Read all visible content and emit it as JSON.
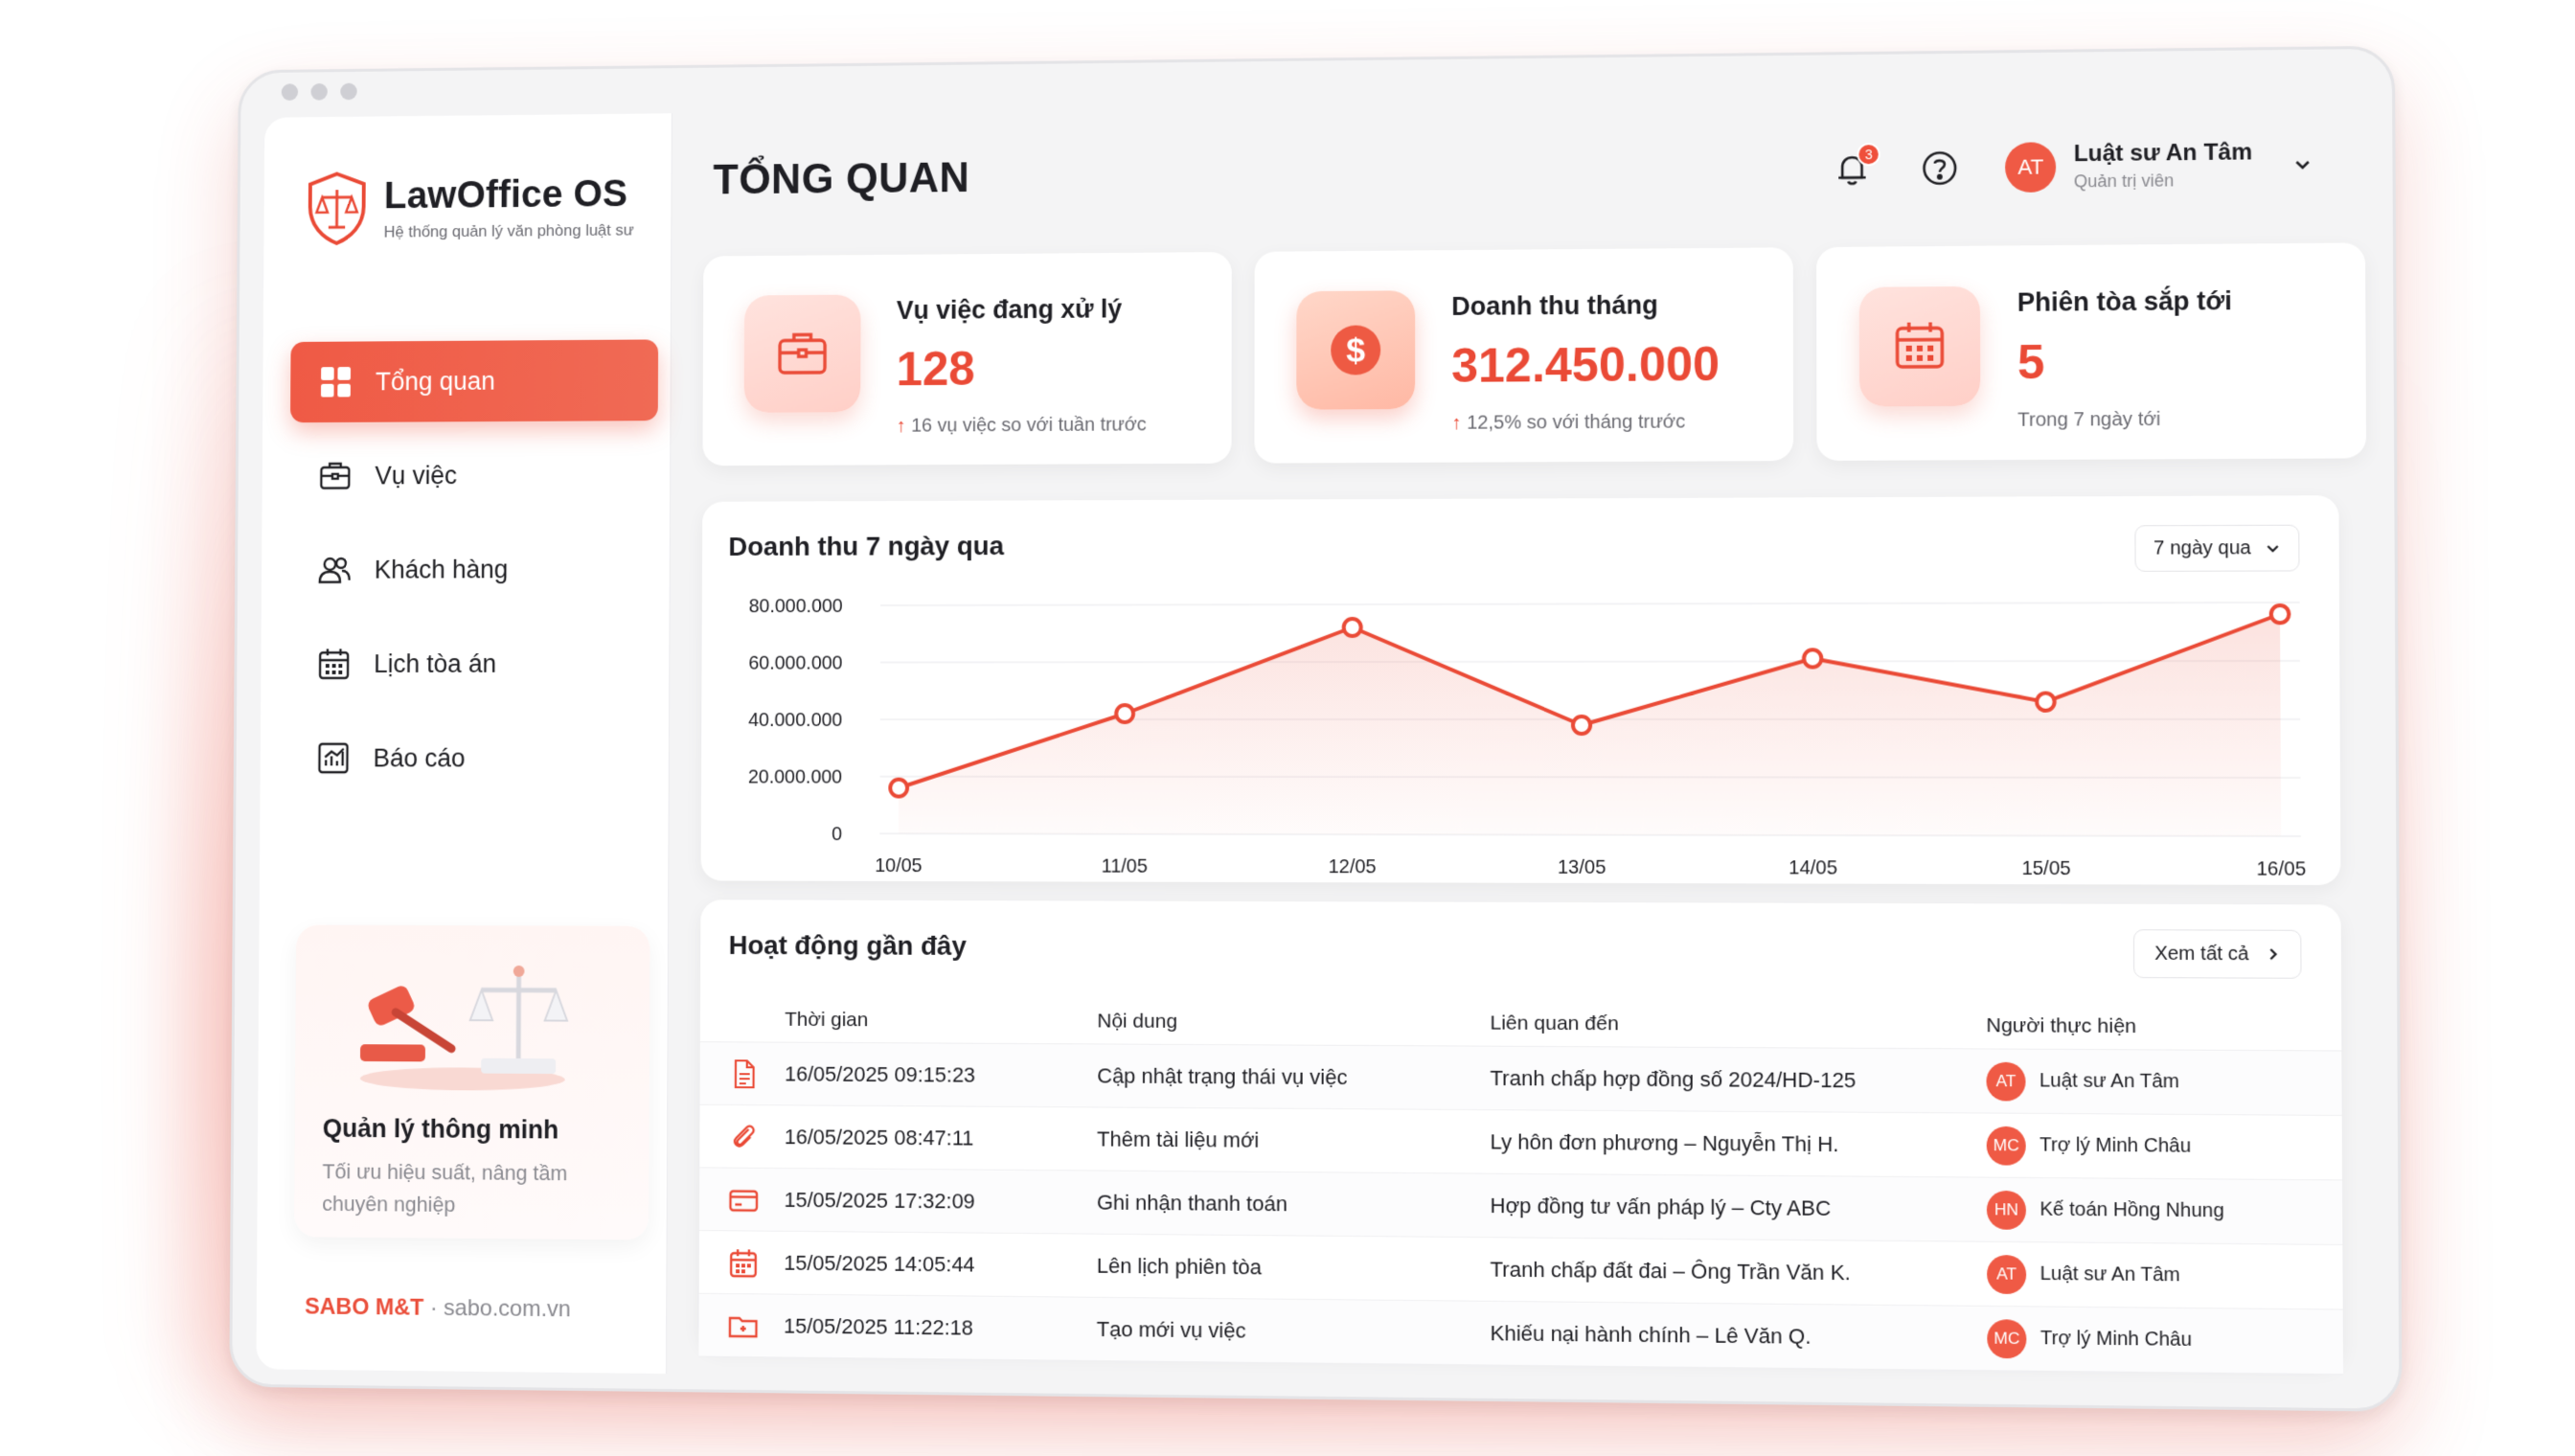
{
  "brand": {
    "name": "LawOffice OS",
    "tagline": "Hệ thống quản lý văn phòng luật sư",
    "accent": "#ef5a45"
  },
  "sidebar": {
    "items": [
      {
        "label": "Tổng quan",
        "icon": "grid-icon",
        "active": true
      },
      {
        "label": "Vụ việc",
        "icon": "briefcase-icon",
        "active": false
      },
      {
        "label": "Khách hàng",
        "icon": "users-icon",
        "active": false
      },
      {
        "label": "Lịch tòa án",
        "icon": "calendar-icon",
        "active": false
      },
      {
        "label": "Báo cáo",
        "icon": "chart-icon",
        "active": false
      }
    ],
    "promo": {
      "title": "Quản lý thông minh",
      "description": "Tối ưu hiệu suất, nâng tầm chuyên nghiệp"
    },
    "footer": {
      "company": "SABO M&T",
      "separator": "·",
      "site": "sabo.com.vn"
    }
  },
  "header": {
    "title": "TỔNG QUAN",
    "notifications": "3",
    "user": {
      "initials": "AT",
      "name": "Luật sư An Tâm",
      "role": "Quản trị viên"
    }
  },
  "stats": [
    {
      "label": "Vụ việc đang xử lý",
      "value": "128",
      "note_arrow": "↑",
      "note": "16 vụ việc so với tuần trước",
      "icon": "briefcase-icon"
    },
    {
      "label": "Doanh thu tháng",
      "value": "312.450.000",
      "note_arrow": "↑",
      "note": "12,5% so với tháng trước",
      "icon": "dollar-icon"
    },
    {
      "label": "Phiên tòa sắp tới",
      "value": "5",
      "note_arrow": "",
      "note": "Trong 7 ngày tới",
      "icon": "calendar-icon"
    }
  ],
  "revenue_chart": {
    "title": "Doanh thu 7 ngày qua",
    "range_label": "7 ngày qua",
    "y_tick_labels": [
      "80.000.000",
      "60.000.000",
      "40.000.000",
      "20.000.000",
      "0"
    ]
  },
  "chart_data": {
    "type": "area",
    "title": "Doanh thu 7 ngày qua",
    "categories": [
      "10/05",
      "11/05",
      "12/05",
      "13/05",
      "14/05",
      "15/05",
      "16/05"
    ],
    "values": [
      16000000,
      42000000,
      72000000,
      38000000,
      61000000,
      46000000,
      76000000
    ],
    "ylim": [
      0,
      80000000
    ],
    "yticks": [
      0,
      20000000,
      40000000,
      60000000,
      80000000
    ],
    "grid": true,
    "color": "#ea4a36"
  },
  "activity": {
    "title": "Hoạt động gần đây",
    "see_all": "Xem tất cả",
    "columns": [
      "Thời gian",
      "Nội dung",
      "Liên quan đến",
      "Người thực hiện"
    ],
    "rows": [
      {
        "icon": "document-icon",
        "time": "16/05/2025 09:15:23",
        "content": "Cập nhật trạng thái vụ việc",
        "related": "Tranh chấp hợp đồng số 2024/HD-125",
        "user_initials": "AT",
        "user": "Luật sư An Tâm"
      },
      {
        "icon": "paperclip-icon",
        "time": "16/05/2025 08:47:11",
        "content": "Thêm tài liệu mới",
        "related": "Ly hôn đơn phương – Nguyễn Thị H.",
        "user_initials": "MC",
        "user": "Trợ lý Minh Châu"
      },
      {
        "icon": "payment-card-icon",
        "time": "15/05/2025 17:32:09",
        "content": "Ghi nhận thanh toán",
        "related": "Hợp đồng tư vấn pháp lý – Cty ABC",
        "user_initials": "HN",
        "user": "Kế toán Hồng Nhung"
      },
      {
        "icon": "calendar-icon",
        "time": "15/05/2025 14:05:44",
        "content": "Lên lịch phiên tòa",
        "related": "Tranh chấp đất đai – Ông Trần Văn K.",
        "user_initials": "AT",
        "user": "Luật sư An Tâm"
      },
      {
        "icon": "folder-icon",
        "time": "15/05/2025 11:22:18",
        "content": "Tạo mới vụ việc",
        "related": "Khiếu nại hành chính – Lê Văn Q.",
        "user_initials": "MC",
        "user": "Trợ lý Minh Châu"
      }
    ]
  }
}
